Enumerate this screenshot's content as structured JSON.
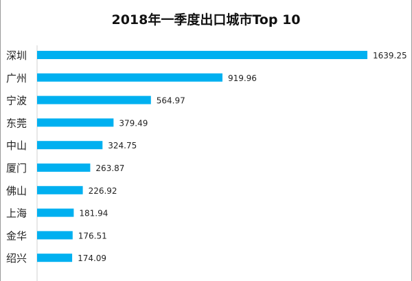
{
  "chart_data": {
    "type": "bar",
    "orientation": "horizontal",
    "title": "2018年一季度出口城市Top 10",
    "categories": [
      "深圳",
      "广州",
      "宁波",
      "东莞",
      "中山",
      "厦门",
      "佛山",
      "上海",
      "金华",
      "绍兴"
    ],
    "values": [
      1639.25,
      919.96,
      564.97,
      379.49,
      324.75,
      263.87,
      226.92,
      181.94,
      176.51,
      174.09
    ],
    "labels": [
      "1639.25",
      "919.96",
      "564.97",
      "379.49",
      "324.75",
      "263.87",
      "226.92",
      "181.94",
      "176.51",
      "174.09"
    ],
    "xlim": [
      0,
      1639.25
    ],
    "grid": false,
    "bar_color": "#00b0f0"
  }
}
